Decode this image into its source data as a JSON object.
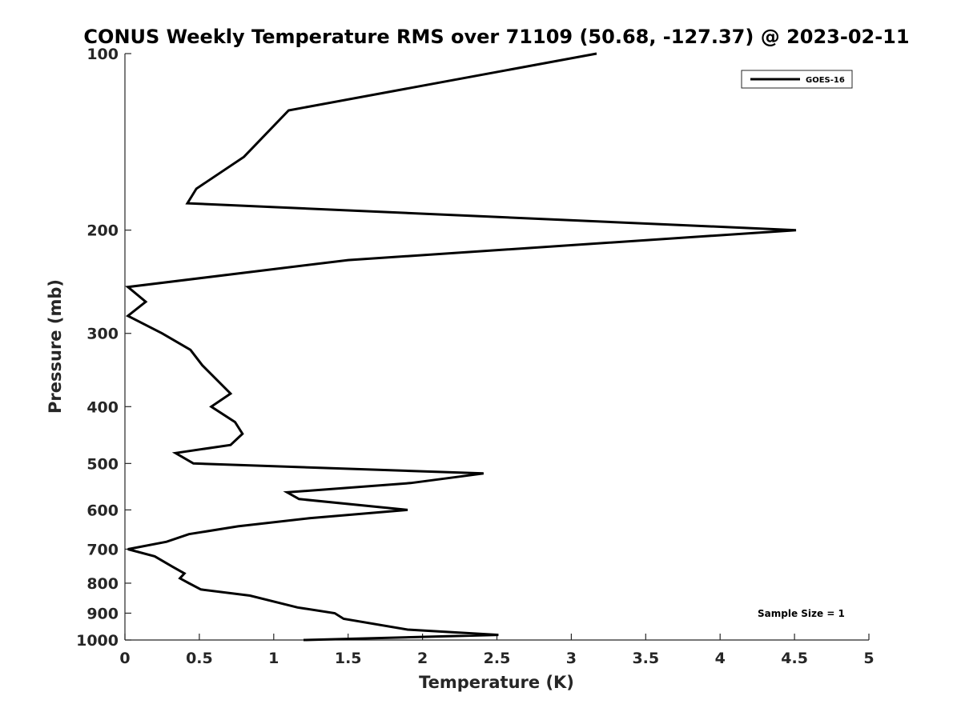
{
  "chart_data": {
    "type": "line",
    "title": "CONUS Weekly Temperature RMS over 71109 (50.68, -127.37) @ 2023-02-11",
    "xlabel": "Temperature (K)",
    "ylabel": "Pressure (mb)",
    "xlim": [
      0,
      5
    ],
    "ylim": [
      100,
      1000
    ],
    "y_scale": "log",
    "y_reversed": true,
    "x_ticks": [
      "0",
      "0.5",
      "1",
      "1.5",
      "2",
      "2.5",
      "3",
      "3.5",
      "4",
      "4.5",
      "5"
    ],
    "y_ticks": [
      "100",
      "200",
      "300",
      "400",
      "500",
      "600",
      "700",
      "800",
      "900",
      "1000"
    ],
    "grid": false,
    "legend_position": "top-right",
    "annotation": "Sample Size = 1",
    "series": [
      {
        "name": "GOES-16",
        "color": "#000000",
        "points": [
          [
            3.17,
            100
          ],
          [
            1.1,
            125
          ],
          [
            0.8,
            150
          ],
          [
            0.48,
            170
          ],
          [
            0.42,
            180
          ],
          [
            4.51,
            200
          ],
          [
            1.5,
            225
          ],
          [
            0.02,
            250
          ],
          [
            0.14,
            265
          ],
          [
            0.02,
            280
          ],
          [
            0.25,
            300
          ],
          [
            0.44,
            320
          ],
          [
            0.52,
            340
          ],
          [
            0.71,
            380
          ],
          [
            0.58,
            400
          ],
          [
            0.74,
            425
          ],
          [
            0.79,
            445
          ],
          [
            0.71,
            465
          ],
          [
            0.34,
            480
          ],
          [
            0.46,
            500
          ],
          [
            2.41,
            520
          ],
          [
            1.92,
            540
          ],
          [
            1.09,
            560
          ],
          [
            1.17,
            575
          ],
          [
            1.9,
            600
          ],
          [
            1.24,
            620
          ],
          [
            0.76,
            640
          ],
          [
            0.43,
            660
          ],
          [
            0.28,
            680
          ],
          [
            0.02,
            700
          ],
          [
            0.2,
            720
          ],
          [
            0.32,
            750
          ],
          [
            0.4,
            770
          ],
          [
            0.37,
            785
          ],
          [
            0.43,
            800
          ],
          [
            0.51,
            820
          ],
          [
            0.84,
            840
          ],
          [
            1.16,
            880
          ],
          [
            1.41,
            900
          ],
          [
            1.47,
            920
          ],
          [
            1.9,
            960
          ],
          [
            2.51,
            980
          ],
          [
            1.2,
            1000
          ]
        ]
      }
    ]
  }
}
